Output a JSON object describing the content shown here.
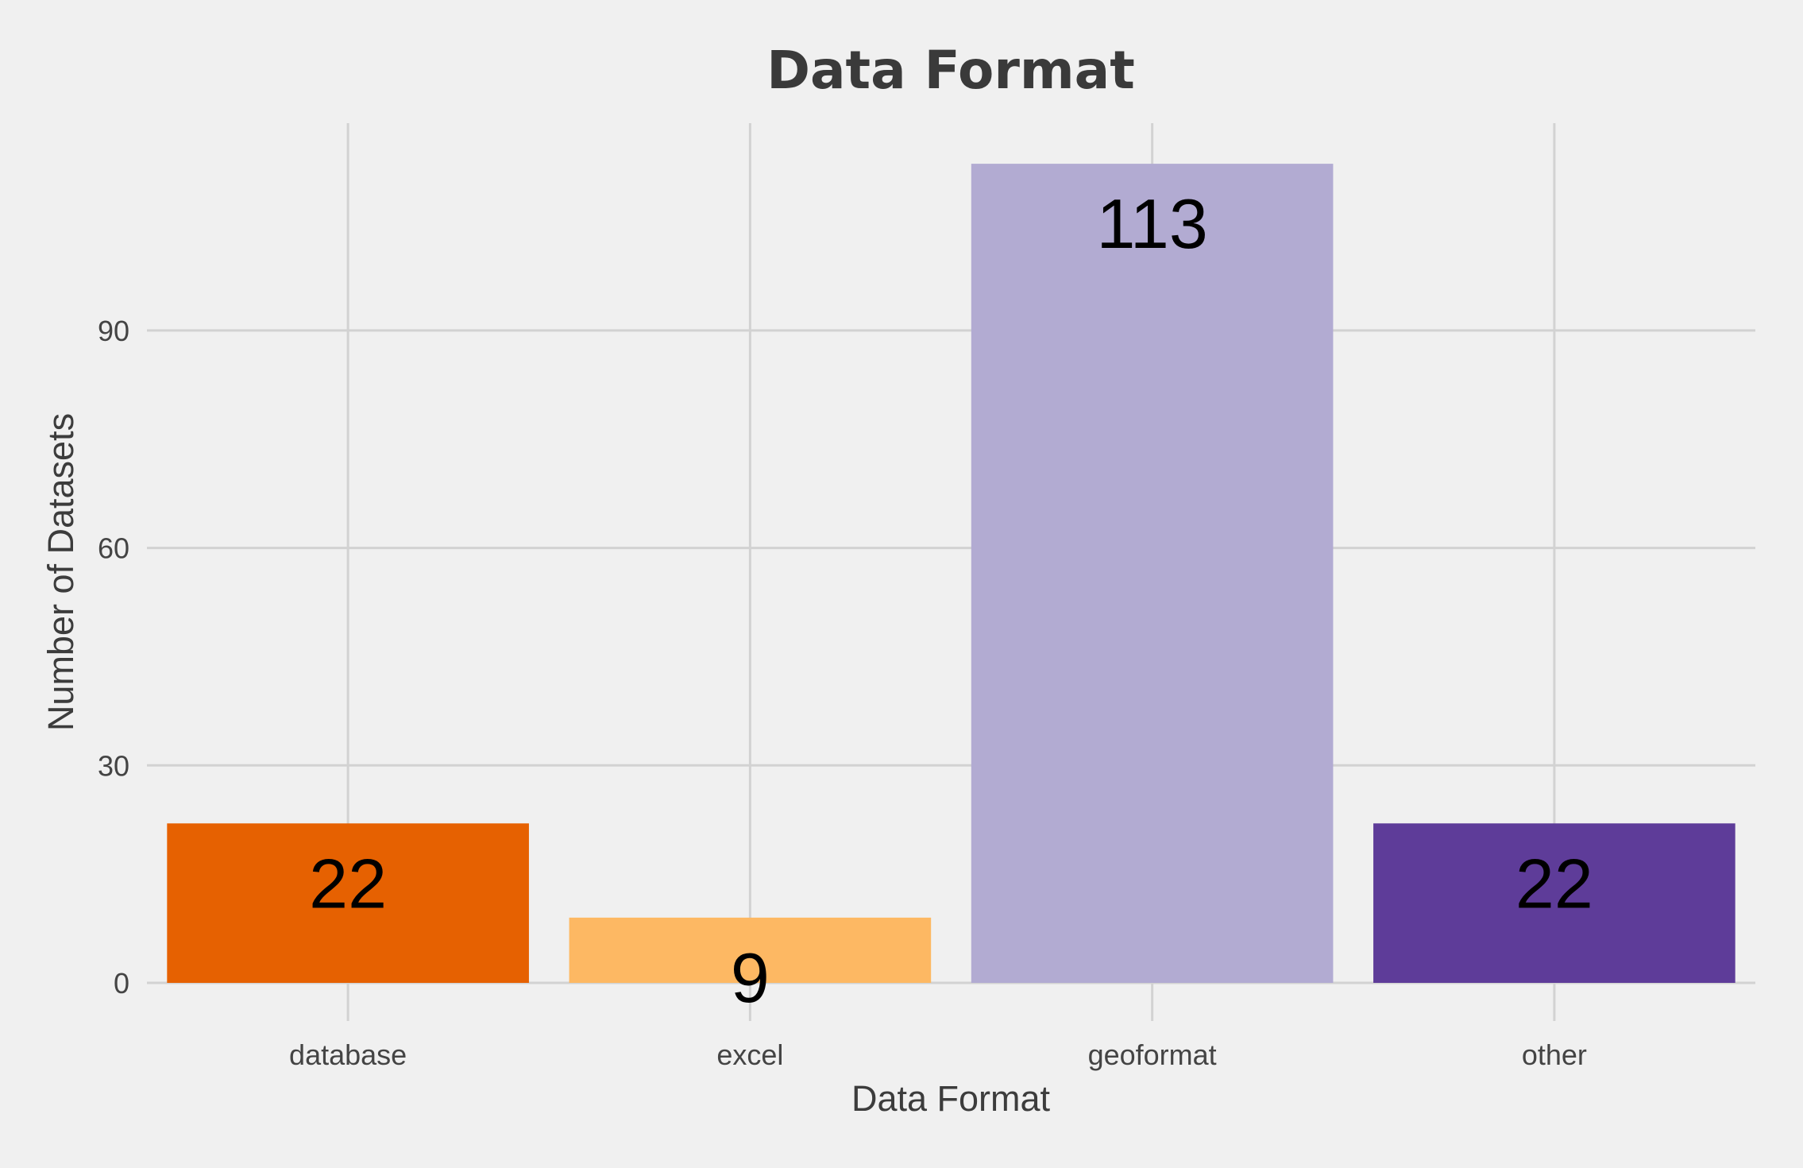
{
  "chart_data": {
    "type": "bar",
    "title": "Data Format",
    "xlabel": "Data Format",
    "ylabel": "Number of Datasets",
    "categories": [
      "database",
      "excel",
      "geoformat",
      "other"
    ],
    "values": [
      22,
      9,
      113,
      22
    ],
    "data_labels": [
      "22",
      "9",
      "113",
      "22"
    ],
    "colors": [
      "#e66101",
      "#fdb863",
      "#b2abd2",
      "#5e3c99"
    ],
    "yticks": [
      0,
      30,
      60,
      90
    ],
    "ytick_labels": [
      "0",
      "30",
      "60",
      "90"
    ],
    "ylim": [
      -7,
      122
    ],
    "grid": true,
    "legend": "none",
    "background": "#f0f0f0"
  }
}
